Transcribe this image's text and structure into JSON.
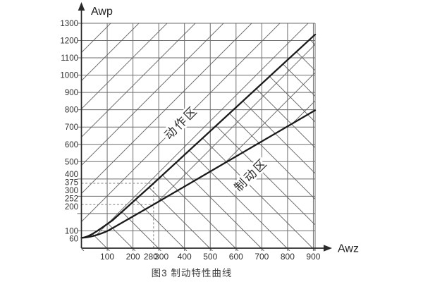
{
  "figure": {
    "caption": "图3  制动特性曲线"
  },
  "chart_data": {
    "type": "line",
    "title": "图3 制动特性曲线",
    "xlabel": "Awz",
    "ylabel": "Awp",
    "xlim": [
      0,
      910
    ],
    "ylim": [
      0,
      1300
    ],
    "grid": "on",
    "x_ticks": [
      100,
      200,
      300,
      400,
      500,
      600,
      700,
      800,
      900
    ],
    "x_guide_tick": 280,
    "y_ticks": [
      60,
      100,
      200,
      252,
      300,
      375,
      400,
      500,
      600,
      700,
      800,
      900,
      1000,
      1100,
      1200,
      1300
    ],
    "y_gridlines": [
      100,
      200,
      300,
      400,
      500,
      600,
      700,
      800,
      900,
      1000,
      1100,
      1200,
      1300
    ],
    "series": [
      {
        "name": "action-zone-boundary",
        "points": [
          [
            0,
            60
          ],
          [
            120,
            160
          ],
          [
            280,
            375
          ],
          [
            907,
            1235
          ]
        ]
      },
      {
        "name": "braking-zone-boundary",
        "points": [
          [
            0,
            60
          ],
          [
            120,
            115
          ],
          [
            280,
            252
          ],
          [
            907,
            797
          ]
        ]
      }
    ],
    "regions": [
      {
        "label": "动作区",
        "x": 398,
        "y": 709,
        "rotation": -45
      },
      {
        "label": "制动区",
        "x": 669,
        "y": 407,
        "rotation": -45
      }
    ],
    "dashed_guides": {
      "x": 280,
      "y_upper": 375,
      "y_lower": 252
    },
    "colors": {
      "grid": "#6e6e6e",
      "hatch": "#5f5f5f",
      "curve": "#1a1a1a",
      "axis": "#2b2b2b",
      "dash": "#808080",
      "text": "#2e2e2e",
      "background": "#ffffff"
    }
  }
}
